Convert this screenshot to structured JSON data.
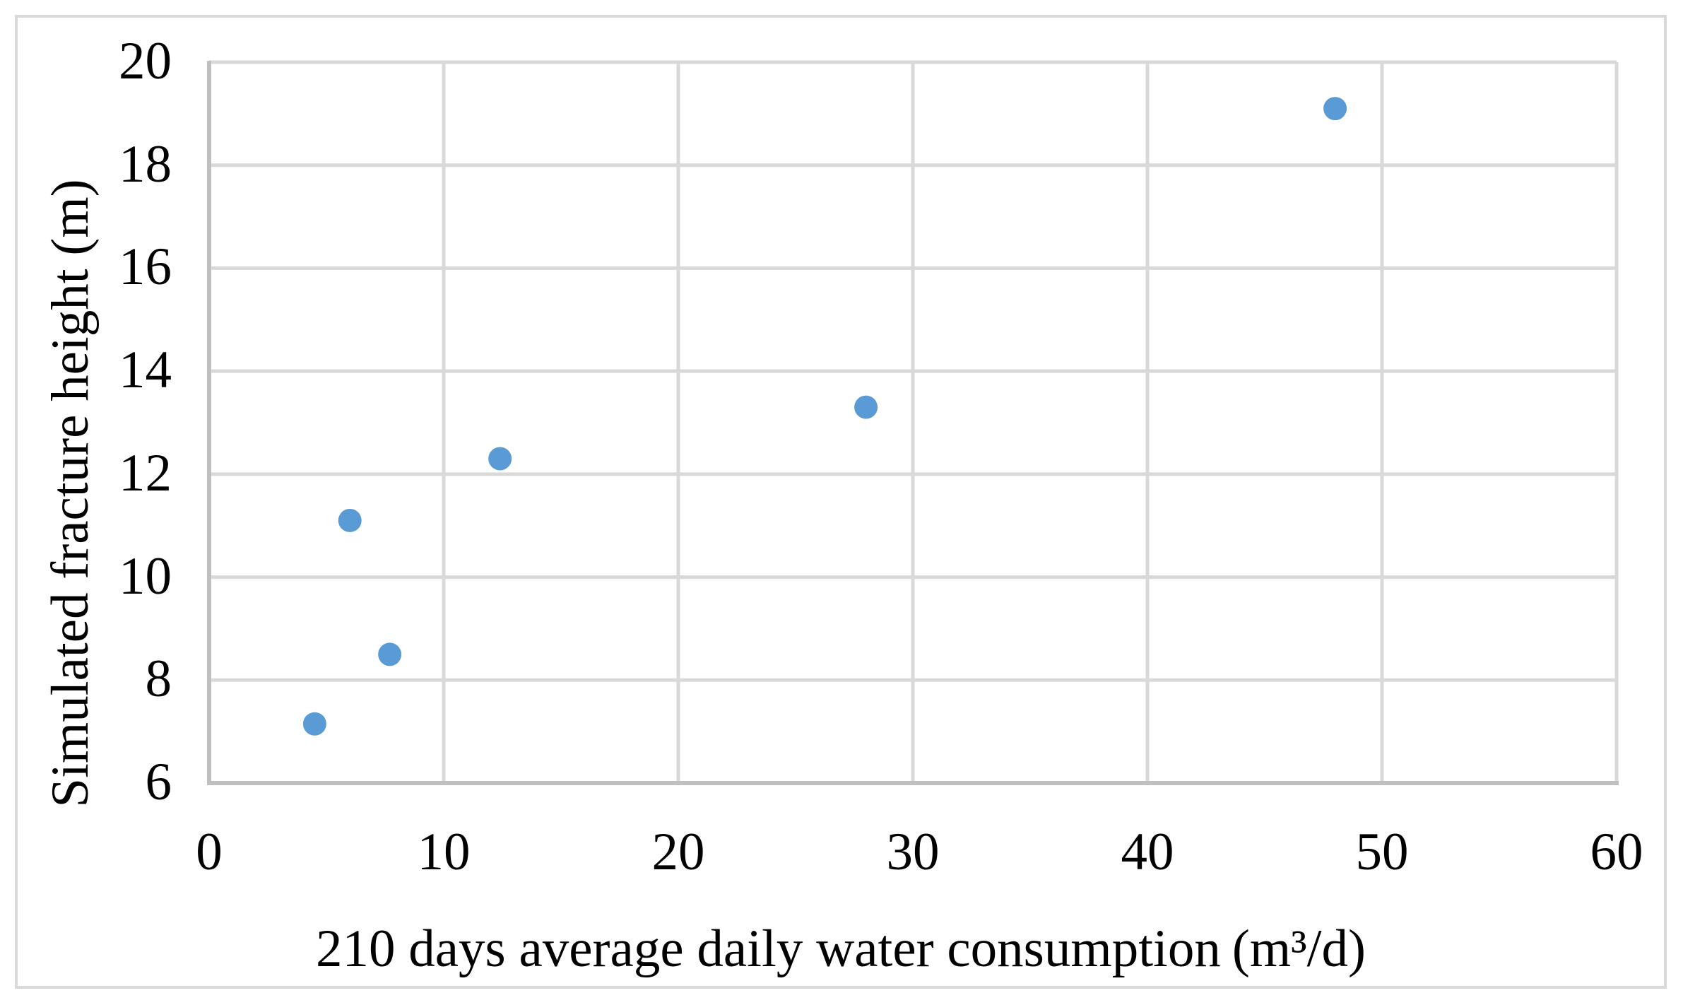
{
  "figure": {
    "description": "Scatter plot figure with light gray outer border"
  },
  "chart_data": {
    "type": "scatter",
    "title": "",
    "xlabel": "210 days average daily water consumption",
    "xlabel_unit": "(m³/d)",
    "ylabel": "Simulated fracture height (m)",
    "xlim": [
      0,
      60
    ],
    "ylim": [
      6,
      20
    ],
    "x_ticks": [
      0,
      10,
      20,
      30,
      40,
      50,
      60
    ],
    "y_ticks": [
      6,
      8,
      10,
      12,
      14,
      16,
      18,
      20
    ],
    "grid": true,
    "legend": false,
    "marker_color": "#5B9BD5",
    "gridline_color": "#D9D9D9",
    "axis_line_color": "#BFBFBF",
    "outer_border_color": "#D9D9D9",
    "series": [
      {
        "points": [
          {
            "x": 4.5,
            "y": 7.15
          },
          {
            "x": 6.0,
            "y": 11.1
          },
          {
            "x": 7.7,
            "y": 8.5
          },
          {
            "x": 12.4,
            "y": 12.3
          },
          {
            "x": 28.0,
            "y": 13.3
          },
          {
            "x": 48.0,
            "y": 19.1
          }
        ]
      }
    ]
  }
}
